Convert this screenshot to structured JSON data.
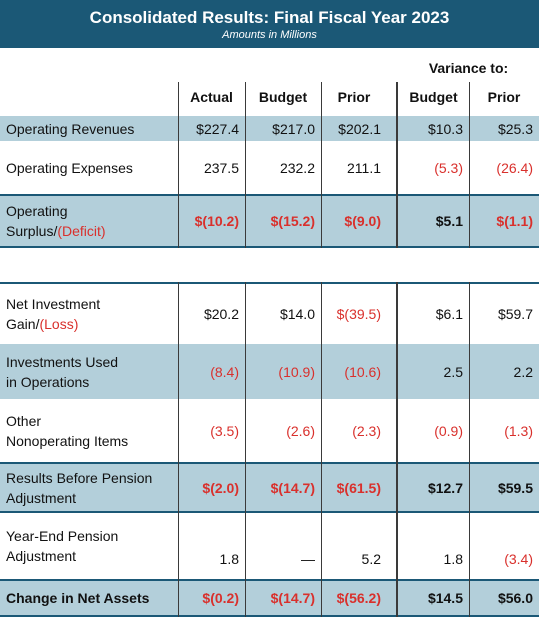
{
  "header": {
    "title": "Consolidated Results: Final Fiscal Year 2023",
    "subtitle": "Amounts in Millions"
  },
  "variance_header": "Variance to:",
  "columns": [
    "Actual",
    "Budget",
    "Prior",
    "Budget",
    "Prior"
  ],
  "rows": [
    {
      "label1": "Operating Revenues",
      "label2": "",
      "vals": [
        "$227.4",
        "$217.0",
        "$202.1",
        "$10.3",
        "$25.3"
      ]
    },
    {
      "label1": "Operating Expenses",
      "label2": "",
      "vals": [
        "237.5",
        "232.2",
        "211.1",
        "(5.3)",
        "(26.4)"
      ]
    },
    {
      "label1": "Operating",
      "label2_prefix": "Surplus/",
      "label2_red": "(Deficit)",
      "vals": [
        "$(10.2)",
        "$(15.2)",
        "$(9.0)",
        "$5.1",
        "$(1.1)"
      ]
    },
    {
      "label1": "Net Investment",
      "label2_prefix": "Gain/",
      "label2_red": "(Loss)",
      "vals": [
        "$20.2",
        "$14.0",
        "$(39.5)",
        "$6.1",
        "$59.7"
      ]
    },
    {
      "label1": "Investments Used",
      "label2": "in Operations",
      "vals": [
        "(8.4)",
        "(10.9)",
        "(10.6)",
        "2.5",
        "2.2"
      ]
    },
    {
      "label1": "Other",
      "label2": "Nonoperating Items",
      "vals": [
        "(3.5)",
        "(2.6)",
        "(2.3)",
        "(0.9)",
        "(1.3)"
      ]
    },
    {
      "label1": "Results Before Pension",
      "label2": "Adjustment",
      "vals": [
        "$(2.0)",
        "$(14.7)",
        "$(61.5)",
        "$12.7",
        "$59.5"
      ]
    },
    {
      "label1": "Year-End Pension",
      "label2": "Adjustment",
      "vals": [
        "1.8",
        "—",
        "5.2",
        "1.8",
        "(3.4)"
      ]
    },
    {
      "label1": "Change in Net Assets",
      "label2": "",
      "vals": [
        "$(0.2)",
        "$(14.7)",
        "$(56.2)",
        "$14.5",
        "$56.0"
      ]
    }
  ],
  "colors": {
    "header_bg": "#1b5876",
    "shaded_row": "#b3cfda",
    "negative_text": "#d9302c"
  }
}
